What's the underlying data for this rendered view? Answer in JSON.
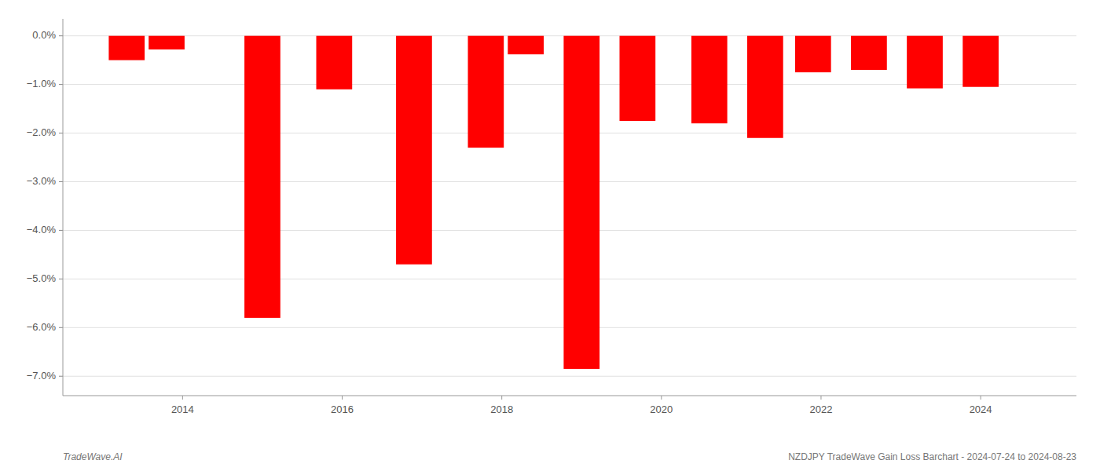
{
  "chart_data": {
    "type": "bar",
    "x": [
      2013.3,
      2013.8,
      2015.0,
      2015.9,
      2016.9,
      2017.8,
      2018.3,
      2019.0,
      2019.7,
      2020.6,
      2021.3,
      2021.9,
      2022.6,
      2023.3,
      2024.0
    ],
    "values": [
      -0.5,
      -0.28,
      -5.8,
      -1.1,
      -4.7,
      -2.3,
      -0.38,
      -6.85,
      -1.75,
      -1.8,
      -2.1,
      -0.75,
      -0.7,
      -1.08,
      -1.05
    ],
    "color": "#ff0000",
    "xlim": [
      2012.5,
      2025.2
    ],
    "xticks": [
      2014,
      2016,
      2018,
      2020,
      2022,
      2024
    ],
    "ylim": [
      -7.4,
      0.35
    ],
    "yticks": [
      {
        "value": 0.0,
        "label": "0.0%"
      },
      {
        "value": -1.0,
        "label": "−1.0%"
      },
      {
        "value": -2.0,
        "label": "−2.0%"
      },
      {
        "value": -3.0,
        "label": "−3.0%"
      },
      {
        "value": -4.0,
        "label": "−4.0%"
      },
      {
        "value": -5.0,
        "label": "−5.0%"
      },
      {
        "value": -6.0,
        "label": "−6.0%"
      },
      {
        "value": -7.0,
        "label": "−7.0%"
      }
    ],
    "grid": true,
    "annotations": [
      "TradeWave.AI",
      "NZDJPY TradeWave Gain Loss Barchart - 2024-07-24 to 2024-08-23"
    ]
  }
}
